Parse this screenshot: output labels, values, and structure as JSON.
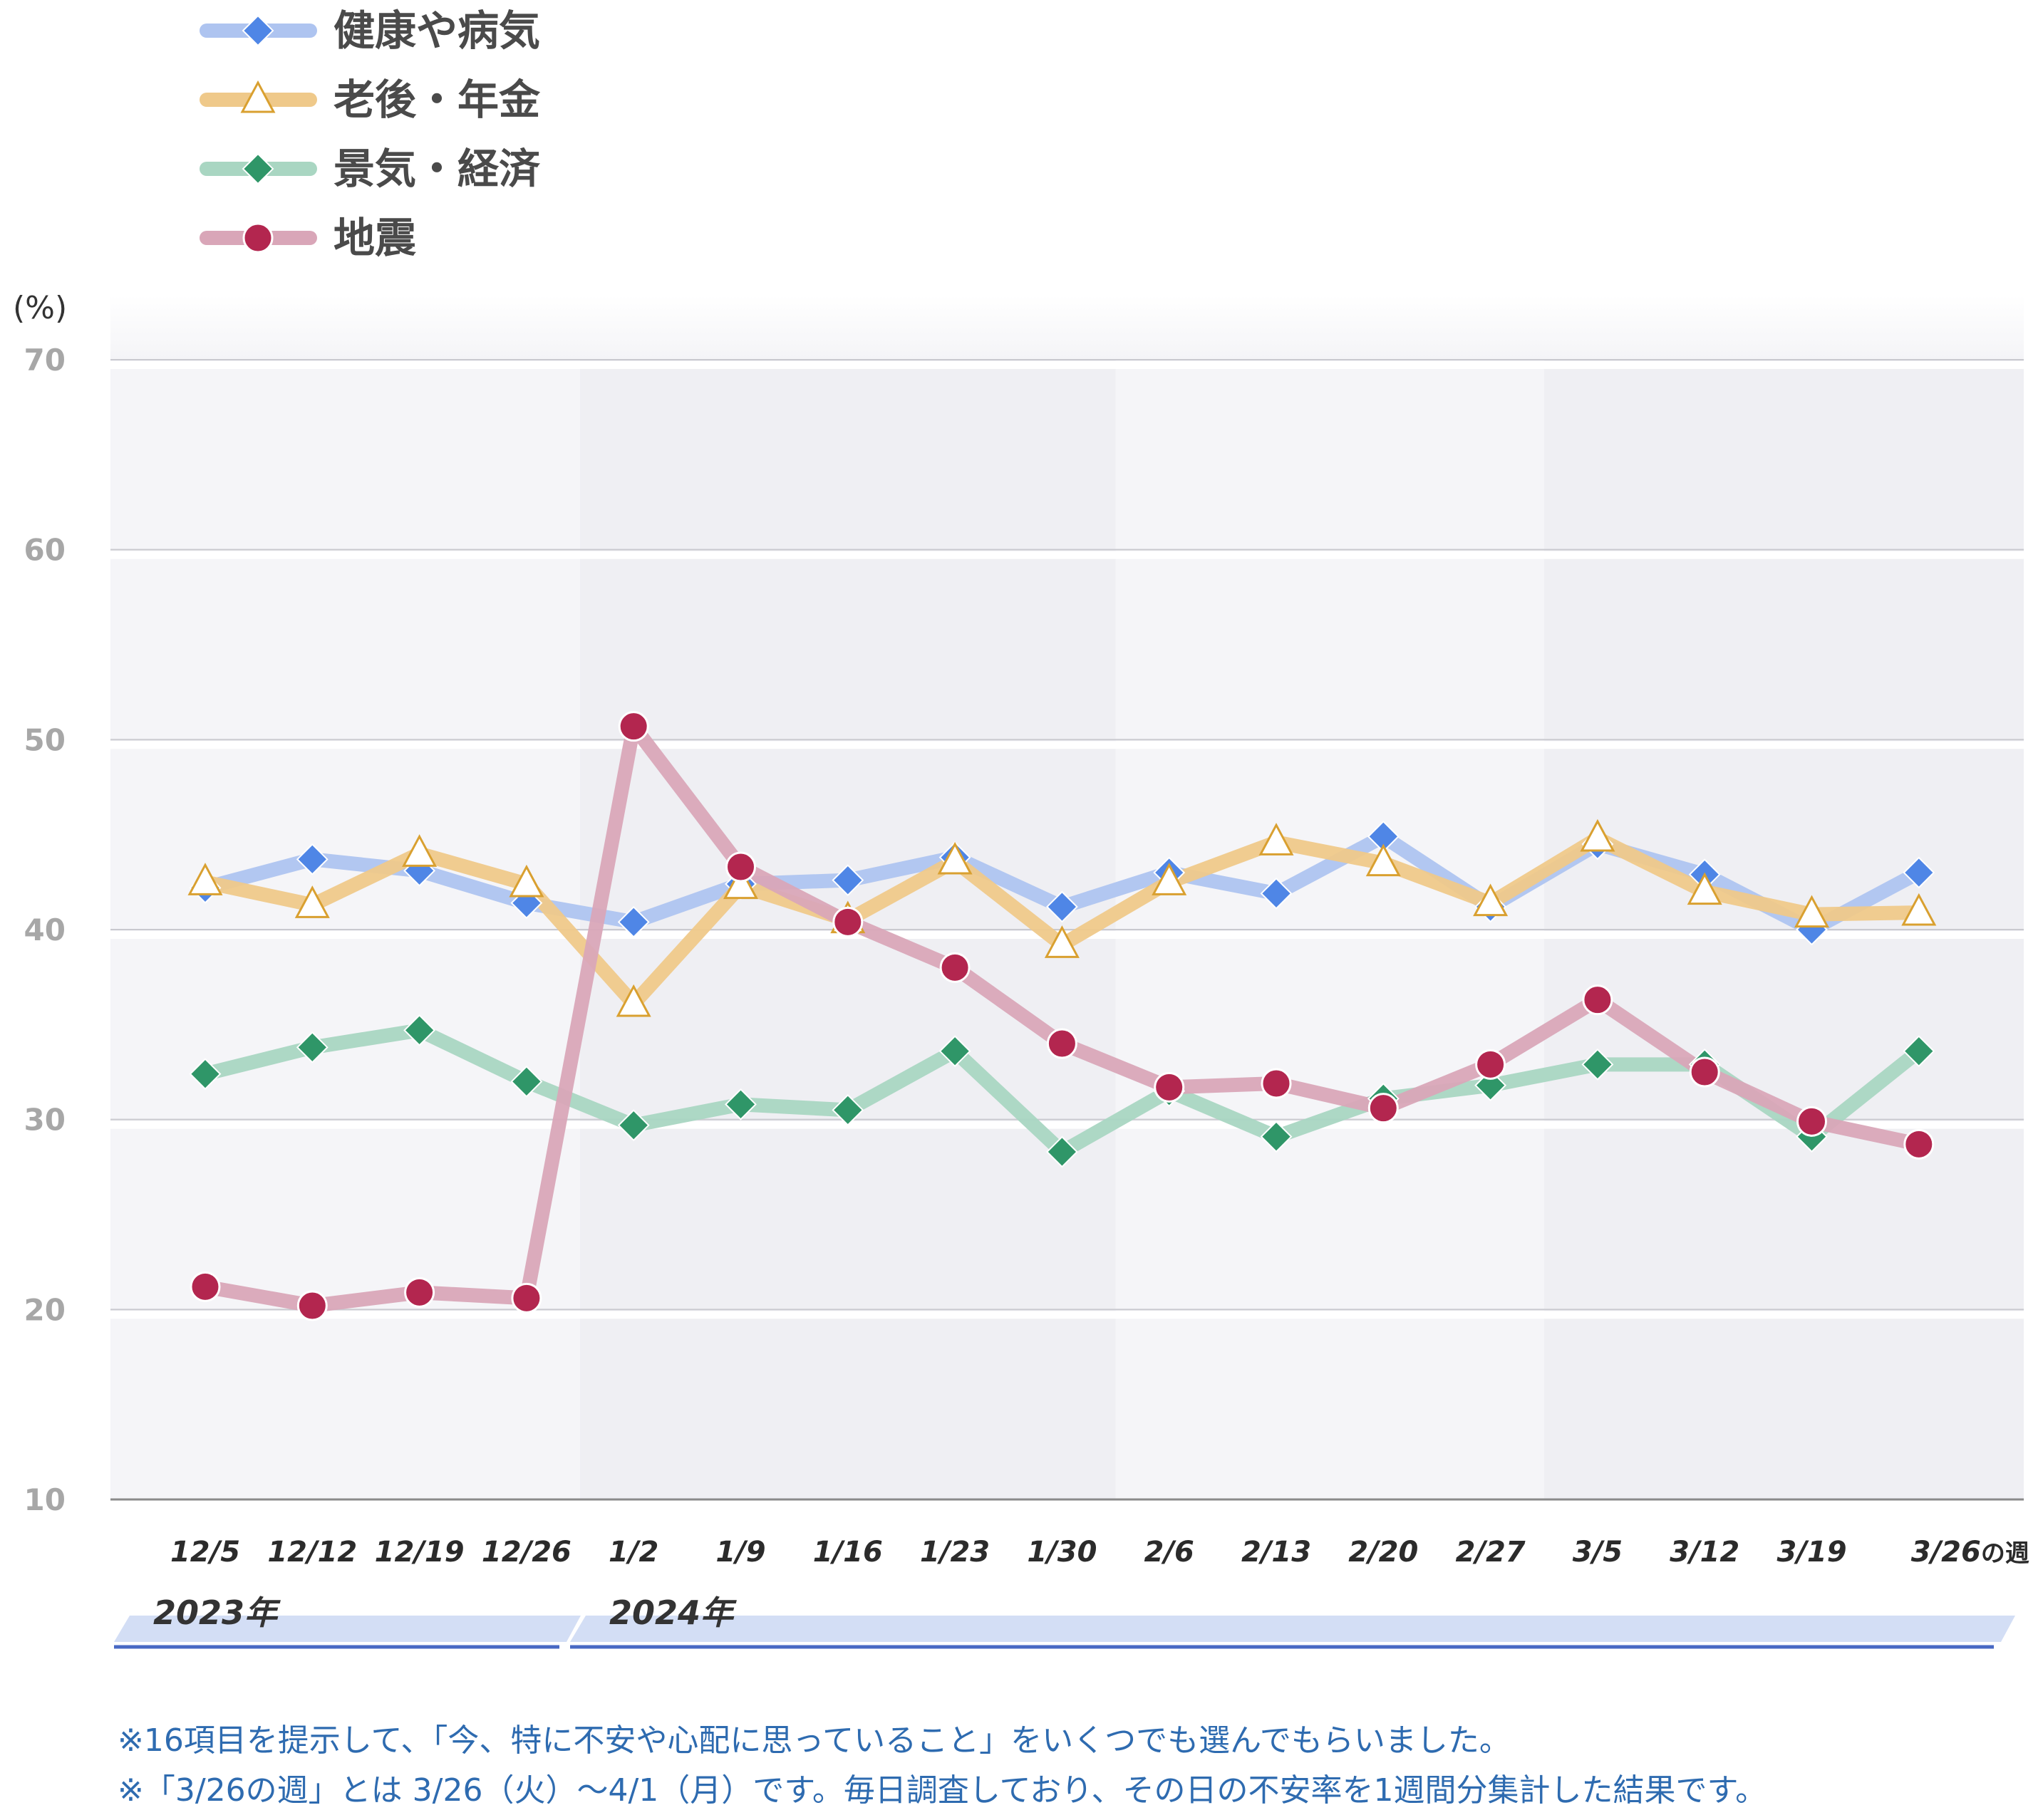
{
  "chart_data": {
    "type": "line",
    "ylabel": "(%)",
    "ylim": [
      10,
      70
    ],
    "yticks": [
      10,
      20,
      30,
      40,
      50,
      60,
      70
    ],
    "grid": true,
    "legend_position": "top-left",
    "categories": [
      "12/5",
      "12/12",
      "12/19",
      "12/26",
      "1/2",
      "1/9",
      "1/16",
      "1/23",
      "1/30",
      "2/6",
      "2/13",
      "2/20",
      "2/27",
      "3/5",
      "3/12",
      "3/19",
      "3/26"
    ],
    "category_suffix_last": "の週",
    "year_labels": [
      {
        "label": "2023年",
        "start_index": 0,
        "end_index": 3
      },
      {
        "label": "2024年",
        "start_index": 4,
        "end_index": 16
      }
    ],
    "series": [
      {
        "name": "健康や病気",
        "marker": "diamond",
        "line_color": "#aec4f0",
        "marker_color": "#4f86e6",
        "values": [
          42.2,
          43.7,
          43.1,
          41.4,
          40.4,
          42.4,
          42.6,
          43.8,
          41.2,
          43.0,
          41.9,
          44.9,
          41.2,
          44.5,
          42.9,
          40.0,
          43.0
        ]
      },
      {
        "name": "老後・年金",
        "marker": "triangle",
        "line_color": "#efc98a",
        "marker_color": "#d9a030",
        "values": [
          42.5,
          41.3,
          44.0,
          42.4,
          36.1,
          42.3,
          40.5,
          43.6,
          39.2,
          42.5,
          44.6,
          43.5,
          41.4,
          44.8,
          42.0,
          40.8,
          40.9
        ]
      },
      {
        "name": "景気・経済",
        "marker": "diamond",
        "line_color": "#a9d6c2",
        "marker_color": "#2f9668",
        "values": [
          32.4,
          33.8,
          34.7,
          32.0,
          29.7,
          30.8,
          30.5,
          33.6,
          28.3,
          31.5,
          29.1,
          31.1,
          31.8,
          32.9,
          32.9,
          29.1,
          33.6
        ]
      },
      {
        "name": "地震",
        "marker": "circle",
        "line_color": "#d9a6b8",
        "marker_color": "#b3264f",
        "values": [
          21.2,
          20.2,
          20.9,
          20.6,
          50.7,
          43.3,
          40.4,
          38.0,
          34.0,
          31.7,
          31.9,
          30.6,
          32.9,
          36.3,
          32.5,
          29.9,
          28.7
        ]
      }
    ]
  },
  "notes": [
    "※16項目を提示して、「今、特に不安や心配に思っていること」をいくつでも選んでもらいました。",
    "※「3/26の週」とは 3/26（火）～4/1（月）です。毎日調査しており、その日の不安率を1週間分集計した結果です。"
  ]
}
